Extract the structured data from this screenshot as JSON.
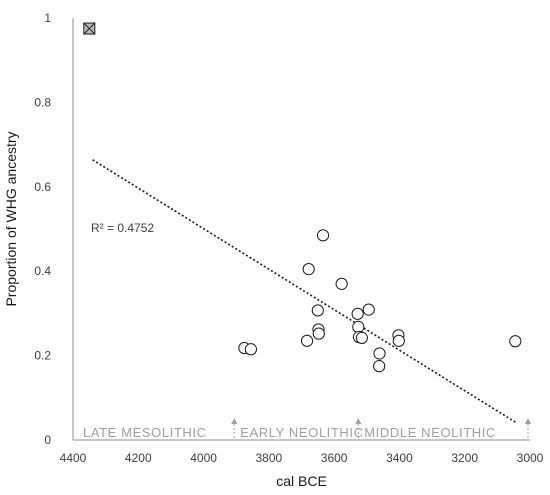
{
  "chart_data": {
    "type": "scatter",
    "xlabel": "cal BCE",
    "ylabel": "Proportion of WHG ancestry",
    "x_reversed": true,
    "xlim": [
      4400,
      3000
    ],
    "ylim": [
      0,
      1
    ],
    "x_ticks": [
      "4400",
      "4200",
      "4000",
      "3800",
      "3600",
      "3400",
      "3200",
      "3000"
    ],
    "y_ticks": [
      "0",
      "0.2",
      "0.4",
      "0.6",
      "0.8",
      "1"
    ],
    "grid": false,
    "points": [
      {
        "x": 3875,
        "y": 0.218
      },
      {
        "x": 3855,
        "y": 0.215
      },
      {
        "x": 3683,
        "y": 0.235
      },
      {
        "x": 3678,
        "y": 0.405
      },
      {
        "x": 3650,
        "y": 0.307
      },
      {
        "x": 3648,
        "y": 0.262
      },
      {
        "x": 3647,
        "y": 0.252
      },
      {
        "x": 3634,
        "y": 0.485
      },
      {
        "x": 3577,
        "y": 0.37
      },
      {
        "x": 3528,
        "y": 0.299
      },
      {
        "x": 3526,
        "y": 0.268
      },
      {
        "x": 3524,
        "y": 0.244
      },
      {
        "x": 3515,
        "y": 0.242
      },
      {
        "x": 3494,
        "y": 0.309
      },
      {
        "x": 3461,
        "y": 0.205
      },
      {
        "x": 3462,
        "y": 0.175
      },
      {
        "x": 3403,
        "y": 0.248
      },
      {
        "x": 3402,
        "y": 0.235
      },
      {
        "x": 3045,
        "y": 0.234
      }
    ],
    "outlier": {
      "x": 4350,
      "y": 0.975,
      "marker": "crossed-square"
    },
    "trendline": {
      "style": "dotted",
      "x": [
        4340,
        3040
      ],
      "y": [
        0.664,
        0.04
      ],
      "r2_label": "R² = 0.4752"
    },
    "periods": [
      {
        "label": "LATE MESOLITHIC",
        "end_x": 3900
      },
      {
        "label": "EARLY NEOLITHIC",
        "end_x": 3520
      },
      {
        "label": "MIDDLE NEOLITHIC",
        "end_x": 3000
      }
    ]
  }
}
